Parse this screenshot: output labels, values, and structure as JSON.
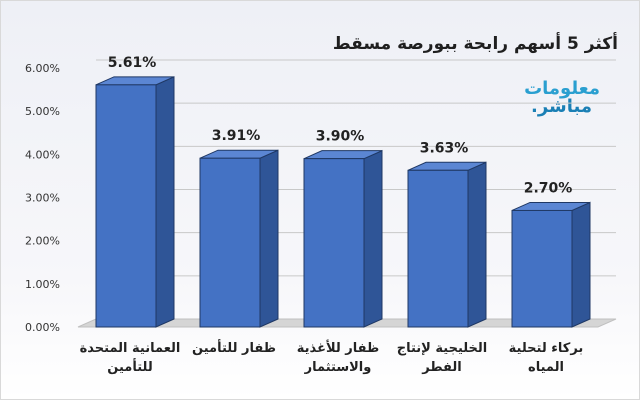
{
  "chart_data": {
    "type": "bar",
    "title": "أكثر 5 أسهم رابحة ببورصة مسقط",
    "categories": [
      [
        "العمانية المتحدة",
        "للتأمين"
      ],
      [
        "ظفار للتأمين"
      ],
      [
        "ظفار للأغذية",
        "والاستثمار"
      ],
      [
        "الخليجية لإنتاج",
        "الفطر"
      ],
      [
        "بركاء لتحلية",
        "المياه"
      ]
    ],
    "values": [
      5.61,
      3.91,
      3.9,
      3.63,
      2.7
    ],
    "data_labels": [
      "5.61%",
      "3.91%",
      "3.90%",
      "3.63%",
      "2.70%"
    ],
    "ylim": [
      0,
      6
    ],
    "yticks": [
      "0.00%",
      "1.00%",
      "2.00%",
      "3.00%",
      "4.00%",
      "5.00%",
      "6.00%"
    ],
    "ytick_values": [
      0,
      1,
      2,
      3,
      4,
      5,
      6
    ],
    "grid": true,
    "legend": "none",
    "colors": {
      "bar_front": "#4472c4",
      "bar_side": "#2f5597",
      "bar_top": "#5b86d3",
      "bar_edge": "#1f3864",
      "floor": "#d5d5d5",
      "grid": "#c8c8c8"
    }
  },
  "logo": {
    "line1": "معلومات",
    "line2": "مباشر."
  }
}
